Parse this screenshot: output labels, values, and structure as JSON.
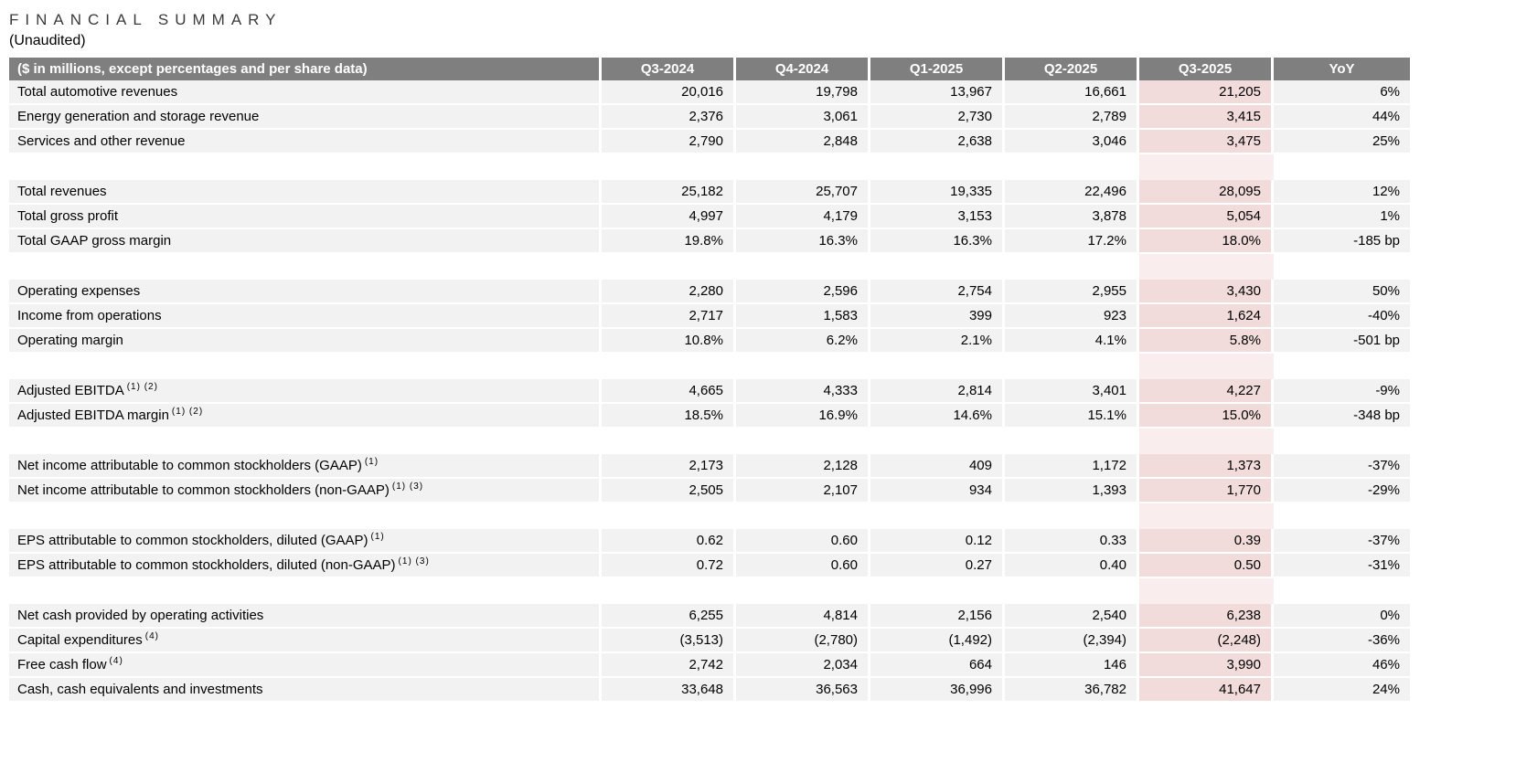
{
  "title": "FINANCIAL SUMMARY",
  "subtitle": "(Unaudited)",
  "colors": {
    "header_bg": "#7f7f7f",
    "header_text": "#ffffff",
    "row_bg": "#f2f2f2",
    "highlight_bg": "#f2dcdb",
    "highlight_gap_bg": "#f9eded"
  },
  "table": {
    "header": {
      "label": "($ in millions, except percentages and per share data)",
      "columns": [
        "Q3-2024",
        "Q4-2024",
        "Q1-2025",
        "Q2-2025",
        "Q3-2025",
        "YoY"
      ]
    },
    "highlight_column": "Q3-2025",
    "sections": [
      {
        "rows": [
          {
            "label": "Total automotive revenues",
            "sup": "",
            "values": [
              "20,016",
              "19,798",
              "13,967",
              "16,661",
              "21,205",
              "6%"
            ]
          },
          {
            "label": "Energy generation and storage revenue",
            "sup": "",
            "values": [
              "2,376",
              "3,061",
              "2,730",
              "2,789",
              "3,415",
              "44%"
            ]
          },
          {
            "label": "Services and other revenue",
            "sup": "",
            "values": [
              "2,790",
              "2,848",
              "2,638",
              "3,046",
              "3,475",
              "25%"
            ]
          }
        ]
      },
      {
        "rows": [
          {
            "label": "Total revenues",
            "sup": "",
            "values": [
              "25,182",
              "25,707",
              "19,335",
              "22,496",
              "28,095",
              "12%"
            ]
          },
          {
            "label": "Total gross profit",
            "sup": "",
            "values": [
              "4,997",
              "4,179",
              "3,153",
              "3,878",
              "5,054",
              "1%"
            ]
          },
          {
            "label": "Total GAAP gross margin",
            "sup": "",
            "values": [
              "19.8%",
              "16.3%",
              "16.3%",
              "17.2%",
              "18.0%",
              "-185 bp"
            ]
          }
        ]
      },
      {
        "rows": [
          {
            "label": "Operating expenses",
            "sup": "",
            "values": [
              "2,280",
              "2,596",
              "2,754",
              "2,955",
              "3,430",
              "50%"
            ]
          },
          {
            "label": "Income from operations",
            "sup": "",
            "values": [
              "2,717",
              "1,583",
              "399",
              "923",
              "1,624",
              "-40%"
            ]
          },
          {
            "label": "Operating margin",
            "sup": "",
            "values": [
              "10.8%",
              "6.2%",
              "2.1%",
              "4.1%",
              "5.8%",
              "-501 bp"
            ]
          }
        ]
      },
      {
        "rows": [
          {
            "label": "Adjusted EBITDA",
            "sup": "(1) (2)",
            "values": [
              "4,665",
              "4,333",
              "2,814",
              "3,401",
              "4,227",
              "-9%"
            ]
          },
          {
            "label": "Adjusted EBITDA margin",
            "sup": "(1) (2)",
            "values": [
              "18.5%",
              "16.9%",
              "14.6%",
              "15.1%",
              "15.0%",
              "-348 bp"
            ]
          }
        ]
      },
      {
        "rows": [
          {
            "label": "Net income attributable to common stockholders (GAAP)",
            "sup": "(1)",
            "values": [
              "2,173",
              "2,128",
              "409",
              "1,172",
              "1,373",
              "-37%"
            ]
          },
          {
            "label": "Net income attributable to common stockholders (non-GAAP)",
            "sup": "(1) (3)",
            "values": [
              "2,505",
              "2,107",
              "934",
              "1,393",
              "1,770",
              "-29%"
            ]
          }
        ]
      },
      {
        "rows": [
          {
            "label": "EPS attributable to common stockholders, diluted (GAAP)",
            "sup": "(1)",
            "values": [
              "0.62",
              "0.60",
              "0.12",
              "0.33",
              "0.39",
              "-37%"
            ]
          },
          {
            "label": "EPS attributable to common stockholders, diluted (non-GAAP)",
            "sup": "(1) (3)",
            "values": [
              "0.72",
              "0.60",
              "0.27",
              "0.40",
              "0.50",
              "-31%"
            ]
          }
        ]
      },
      {
        "rows": [
          {
            "label": "Net cash provided by operating activities",
            "sup": "",
            "values": [
              "6,255",
              "4,814",
              "2,156",
              "2,540",
              "6,238",
              "0%"
            ]
          },
          {
            "label": "Capital expenditures",
            "sup": "(4)",
            "values": [
              "(3,513)",
              "(2,780)",
              "(1,492)",
              "(2,394)",
              "(2,248)",
              "-36%"
            ]
          },
          {
            "label": "Free cash flow",
            "sup": "(4)",
            "values": [
              "2,742",
              "2,034",
              "664",
              "146",
              "3,990",
              "46%"
            ]
          },
          {
            "label": "Cash, cash equivalents and investments",
            "sup": "",
            "values": [
              "33,648",
              "36,563",
              "36,996",
              "36,782",
              "41,647",
              "24%"
            ]
          }
        ]
      }
    ]
  }
}
